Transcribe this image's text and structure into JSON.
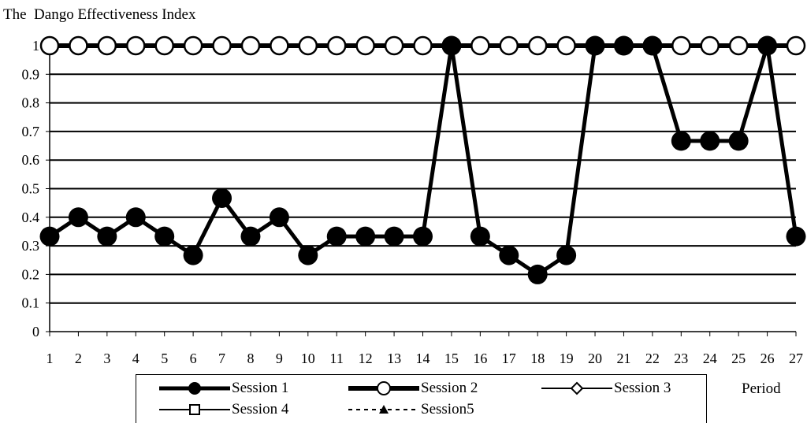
{
  "chart_data": {
    "type": "line",
    "title": "The  Dango Effectiveness Index",
    "xlabel": "Period",
    "ylabel": "",
    "x": [
      1,
      2,
      3,
      4,
      5,
      6,
      7,
      8,
      9,
      10,
      11,
      12,
      13,
      14,
      15,
      16,
      17,
      18,
      19,
      20,
      21,
      22,
      23,
      24,
      25,
      26,
      27
    ],
    "ylim": [
      0,
      1
    ],
    "yticks": [
      "0",
      "0.1",
      "0.2",
      "0.3",
      "0.4",
      "0.5",
      "0.6",
      "0.7",
      "0.8",
      "0.9",
      "1"
    ],
    "grid": true,
    "legend_position": "bottom",
    "series": [
      {
        "name": "Session 1",
        "marker": "filled-circle",
        "line": "solid-thick",
        "values": [
          0.333,
          0.4,
          0.333,
          0.4,
          0.333,
          0.267,
          0.467,
          0.333,
          0.4,
          0.267,
          0.333,
          0.333,
          0.333,
          0.333,
          1,
          0.333,
          0.267,
          0.2,
          0.267,
          1,
          1,
          1,
          0.667,
          0.667,
          0.667,
          1,
          0.333
        ]
      },
      {
        "name": "Session 2",
        "marker": "hollow-circle",
        "line": "solid-thick",
        "values": [
          1,
          1,
          1,
          1,
          1,
          1,
          1,
          1,
          1,
          1,
          1,
          1,
          1,
          1,
          1,
          1,
          1,
          1,
          1,
          1,
          1,
          1,
          1,
          1,
          1,
          1,
          1
        ]
      },
      {
        "name": "Session 3",
        "marker": "hollow-diamond",
        "line": "solid",
        "values": [
          1,
          1,
          1,
          1,
          1,
          1,
          1,
          1,
          1,
          1,
          1,
          1,
          1,
          1,
          1,
          1,
          1,
          1,
          1,
          1,
          1,
          1,
          1,
          1,
          1,
          1,
          1
        ]
      },
      {
        "name": "Session 4",
        "marker": "hollow-square",
        "line": "solid",
        "values": [
          1,
          1,
          1,
          1,
          1,
          1,
          1,
          1,
          1,
          1,
          1,
          1,
          1,
          1,
          1,
          1,
          1,
          1,
          1,
          1,
          1,
          1,
          1,
          1,
          1,
          1,
          1
        ]
      },
      {
        "name": "Session5",
        "marker": "filled-triangle",
        "line": "dashed",
        "values": [
          1,
          1,
          1,
          1,
          1,
          1,
          1,
          1,
          1,
          1,
          1,
          1,
          1,
          1,
          1,
          1,
          1,
          1,
          1,
          1,
          1,
          1,
          1,
          1,
          1,
          1,
          1
        ]
      }
    ],
    "colors": {
      "line": "#000000",
      "background": "#ffffff"
    }
  }
}
